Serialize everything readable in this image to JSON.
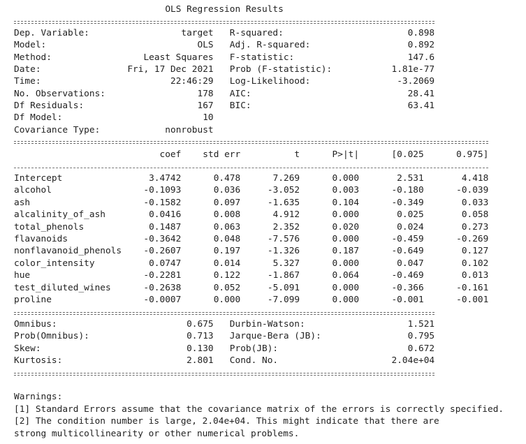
{
  "title": "OLS Regression Results",
  "summary": {
    "left": [
      [
        "Dep. Variable:",
        "target"
      ],
      [
        "Model:",
        "OLS"
      ],
      [
        "Method:",
        "Least Squares"
      ],
      [
        "Date:",
        "Fri, 17 Dec 2021"
      ],
      [
        "Time:",
        "22:46:29"
      ],
      [
        "No. Observations:",
        "178"
      ],
      [
        "Df Residuals:",
        "167"
      ],
      [
        "Df Model:",
        "10"
      ],
      [
        "Covariance Type:",
        "nonrobust"
      ]
    ],
    "right": [
      [
        "R-squared:",
        "0.898"
      ],
      [
        "Adj. R-squared:",
        "0.892"
      ],
      [
        "F-statistic:",
        "147.6"
      ],
      [
        "Prob (F-statistic):",
        "1.81e-77"
      ],
      [
        "Log-Likelihood:",
        "-3.2069"
      ],
      [
        "AIC:",
        "28.41"
      ],
      [
        "BIC:",
        "63.41"
      ]
    ]
  },
  "coefficients": {
    "header": [
      "coef",
      "std err",
      "t",
      "P>|t|",
      "[0.025",
      "0.975]"
    ],
    "rows": [
      [
        "Intercept",
        "3.4742",
        "0.478",
        "7.269",
        "0.000",
        "2.531",
        "4.418"
      ],
      [
        "alcohol",
        "-0.1093",
        "0.036",
        "-3.052",
        "0.003",
        "-0.180",
        "-0.039"
      ],
      [
        "ash",
        "-0.1582",
        "0.097",
        "-1.635",
        "0.104",
        "-0.349",
        "0.033"
      ],
      [
        "alcalinity_of_ash",
        "0.0416",
        "0.008",
        "4.912",
        "0.000",
        "0.025",
        "0.058"
      ],
      [
        "total_phenols",
        "0.1487",
        "0.063",
        "2.352",
        "0.020",
        "0.024",
        "0.273"
      ],
      [
        "flavanoids",
        "-0.3642",
        "0.048",
        "-7.576",
        "0.000",
        "-0.459",
        "-0.269"
      ],
      [
        "nonflavanoid_phenols",
        "-0.2607",
        "0.197",
        "-1.326",
        "0.187",
        "-0.649",
        "0.127"
      ],
      [
        "color_intensity",
        "0.0747",
        "0.014",
        "5.327",
        "0.000",
        "0.047",
        "0.102"
      ],
      [
        "hue",
        "-0.2281",
        "0.122",
        "-1.867",
        "0.064",
        "-0.469",
        "0.013"
      ],
      [
        "test_diluted_wines",
        "-0.2638",
        "0.052",
        "-5.091",
        "0.000",
        "-0.366",
        "-0.161"
      ],
      [
        "proline",
        "-0.0007",
        "0.000",
        "-7.099",
        "0.000",
        "-0.001",
        "-0.001"
      ]
    ]
  },
  "diagnostics": {
    "left": [
      [
        "Omnibus:",
        "0.675"
      ],
      [
        "Prob(Omnibus):",
        "0.713"
      ],
      [
        "Skew:",
        "0.130"
      ],
      [
        "Kurtosis:",
        "2.801"
      ]
    ],
    "right": [
      [
        "Durbin-Watson:",
        "1.521"
      ],
      [
        "Jarque-Bera (JB):",
        "0.795"
      ],
      [
        "Prob(JB):",
        "0.672"
      ],
      [
        "Cond. No.",
        "2.04e+04"
      ]
    ]
  },
  "warnings": {
    "title": "Warnings:",
    "lines": [
      "[1] Standard Errors assume that the covariance matrix of the errors is correctly specified.",
      "[2] The condition number is large, 2.04e+04. This might indicate that there are",
      "strong multicollinearity or other numerical problems."
    ]
  }
}
